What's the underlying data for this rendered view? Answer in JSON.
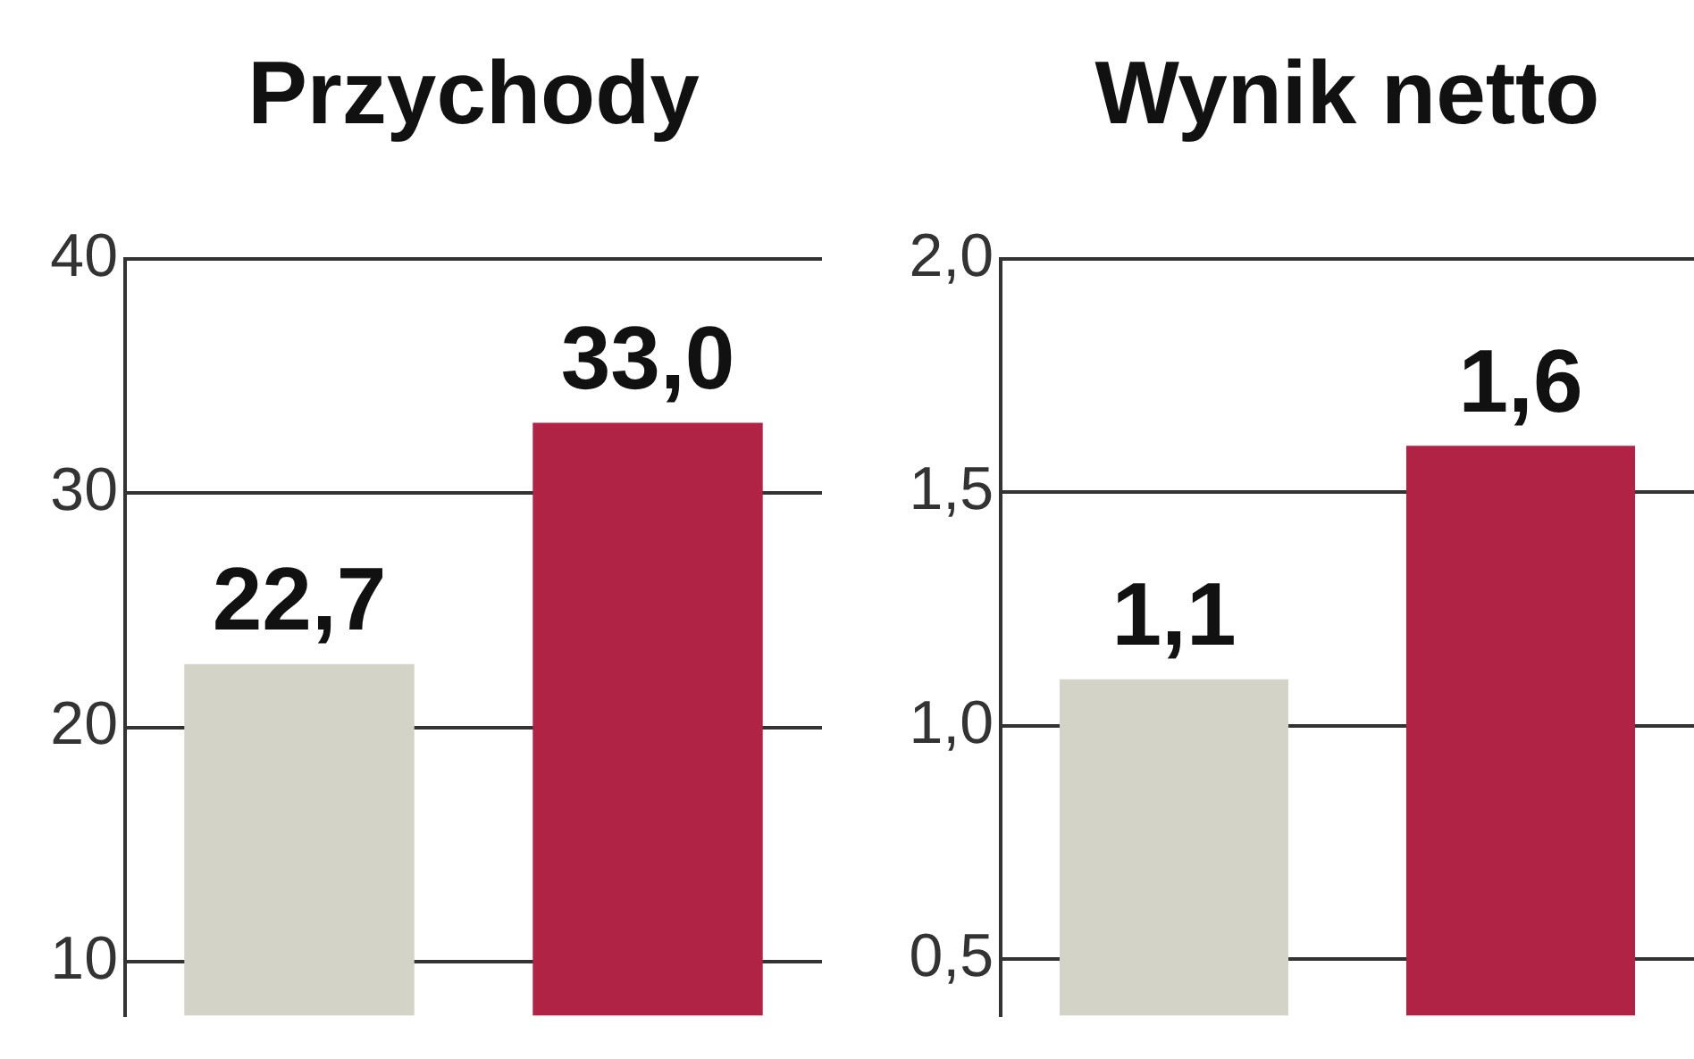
{
  "chart_data": [
    {
      "type": "bar",
      "title": "Przychody",
      "categories": [
        null,
        null
      ],
      "values": [
        22.7,
        33.0
      ],
      "colors": [
        "#d3d3c8",
        "#b02345"
      ],
      "value_labels": [
        "22,7",
        "33,0"
      ],
      "ylim": [
        7.7,
        40
      ],
      "yticks": [
        10,
        20,
        30,
        40
      ],
      "grid": "y",
      "tick_labels": "y"
    },
    {
      "type": "bar",
      "title": "Wynik netto",
      "categories": [
        null,
        null
      ],
      "values": [
        1.1,
        1.6
      ],
      "colors": [
        "#d3d3c8",
        "#b02345"
      ],
      "value_labels": [
        "1,1",
        "1,6"
      ],
      "ylim": [
        0.38,
        2.0
      ],
      "yticks": [
        {
          "value": 0.5,
          "label": "0,5"
        },
        {
          "value": 1.0,
          "label": "1,0"
        },
        {
          "value": 1.5,
          "label": "1,5"
        },
        {
          "value": 2.0,
          "label": "2,0"
        }
      ],
      "grid": "y",
      "tick_labels": "y"
    }
  ]
}
